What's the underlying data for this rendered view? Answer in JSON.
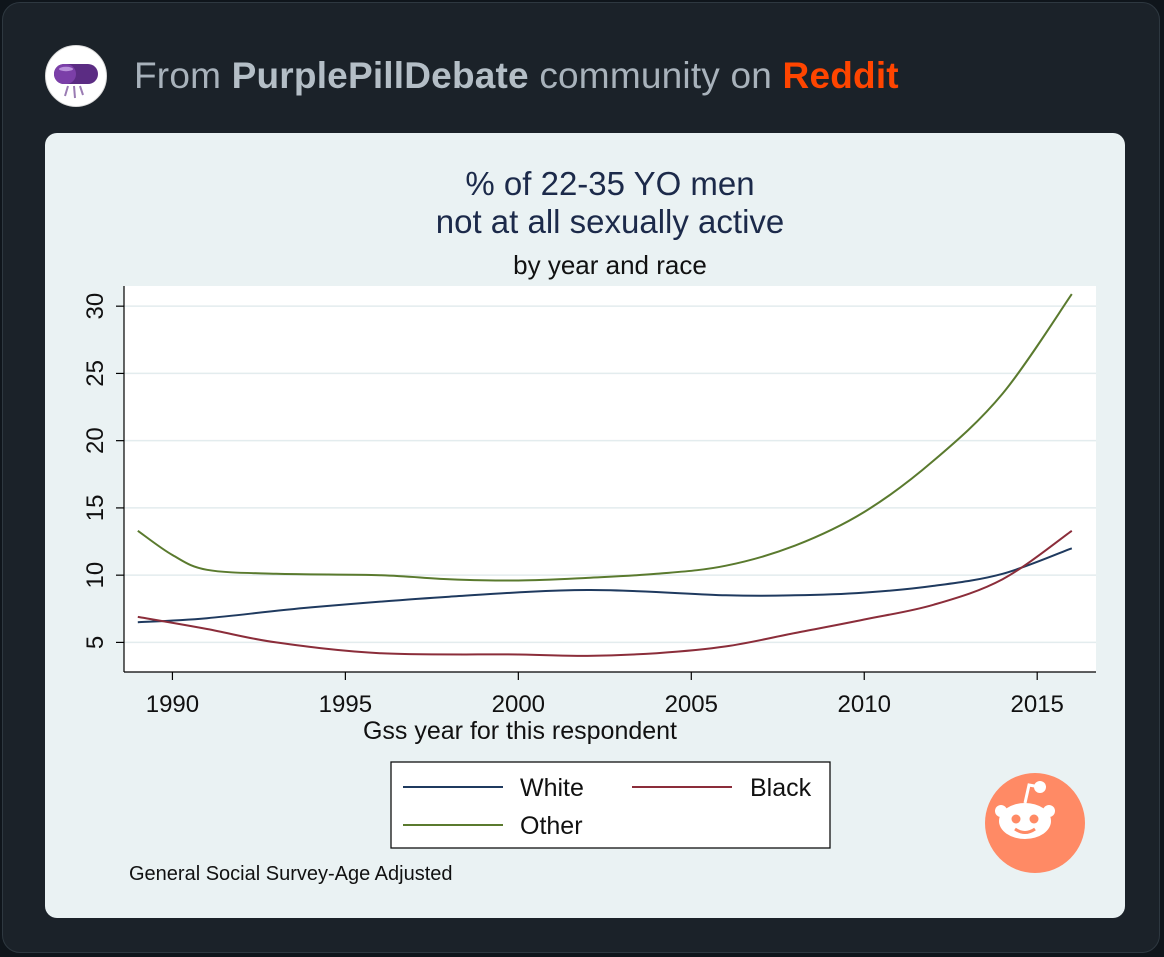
{
  "header": {
    "prefix": "From",
    "community": "PurplePillDebate",
    "middle": "community on",
    "platform": "Reddit"
  },
  "colors": {
    "platform": "#ff4500",
    "white_series": "#1f3a5f",
    "black_series": "#8b2d3a",
    "other_series": "#5a7a2e"
  },
  "chart_data": {
    "type": "line",
    "title_line1": "% of 22-35 YO men",
    "title_line2": "not at all sexually active",
    "subtitle": "by year and race",
    "xlabel": "Gss year for this respondent",
    "ylabel": "",
    "xlim": [
      1988.6,
      2016.7
    ],
    "ylim": [
      2.8,
      31.5
    ],
    "x_ticks": [
      1990,
      1995,
      2000,
      2005,
      2010,
      2015
    ],
    "y_ticks": [
      5,
      10,
      15,
      20,
      25,
      30
    ],
    "source_note": "General Social Survey-Age Adjusted",
    "series": [
      {
        "name": "White",
        "color": "#1f3a5f",
        "x": [
          1989,
          1991,
          1994,
          1998,
          2002,
          2006,
          2008,
          2010,
          2012,
          2014,
          2016
        ],
        "values": [
          6.5,
          6.8,
          7.6,
          8.4,
          8.9,
          8.5,
          8.5,
          8.7,
          9.2,
          10.1,
          12.0
        ]
      },
      {
        "name": "Black",
        "color": "#8b2d3a",
        "x": [
          1989,
          1991,
          1993,
          1996,
          2000,
          2002,
          2004,
          2006,
          2008,
          2010,
          2012,
          2014,
          2016
        ],
        "values": [
          6.9,
          6.0,
          5.0,
          4.2,
          4.1,
          4.0,
          4.2,
          4.7,
          5.7,
          6.7,
          7.8,
          9.7,
          13.3
        ]
      },
      {
        "name": "Other",
        "color": "#5a7a2e",
        "x": [
          1989,
          1990,
          1991,
          1993,
          1996,
          1998,
          2000,
          2002,
          2004,
          2006,
          2008,
          2010,
          2012,
          2014,
          2016
        ],
        "values": [
          13.3,
          11.5,
          10.4,
          10.1,
          10.0,
          9.7,
          9.6,
          9.8,
          10.1,
          10.7,
          12.2,
          14.7,
          18.5,
          23.5,
          30.9
        ]
      }
    ],
    "legend": [
      "White",
      "Black",
      "Other"
    ]
  }
}
